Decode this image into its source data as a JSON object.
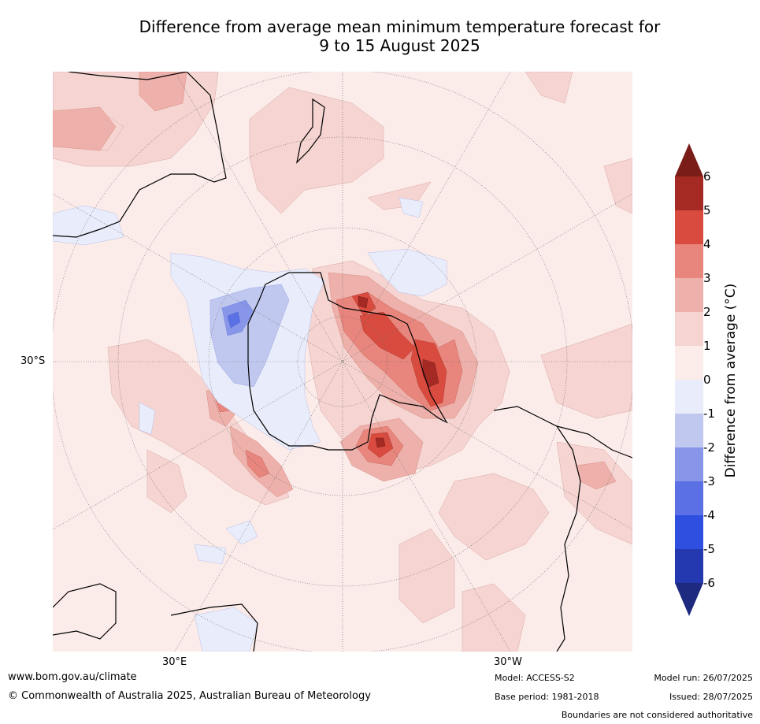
{
  "title": {
    "line1": "Difference from average mean minimum temperature forecast for",
    "line2": "9 to 15 August 2025"
  },
  "map": {
    "projection": "south polar stereographic",
    "lat_label": "30°S",
    "lon_labels": [
      "30°E",
      "30°W"
    ],
    "gridlines": "dotted"
  },
  "colorbar": {
    "label": "Difference from average ($^\\circ$C)",
    "label_display": "Difference from average (°C)",
    "ticks": [
      "6",
      "5",
      "4",
      "3",
      "2",
      "1",
      "0",
      "-1",
      "-2",
      "-3",
      "-4",
      "-5",
      "-6"
    ],
    "colors": {
      "gt6": "#7a1c18",
      "5_6": "#a52a24",
      "4_5": "#d94b3f",
      "3_4": "#e8857c",
      "2_3": "#eeb0aa",
      "1_2": "#f5d4d1",
      "0_1": "#fbebe9",
      "m1_0": "#e9ecfa",
      "m2_m1": "#c0c8f0",
      "m3_m2": "#8796e8",
      "m4_m3": "#5a70e4",
      "m5_m4": "#2f4fe0",
      "m6_m5": "#2438b0",
      "lt_m6": "#1e2a80"
    },
    "extend": "both"
  },
  "footer": {
    "website": "www.bom.gov.au/climate",
    "copyright": "© Commonwealth of Australia 2025, Australian Bureau of Meteorology",
    "model": "Model: ACCESS-S2",
    "base_period": "Base period: 1981-2018",
    "model_run": "Model run: 26/07/2025",
    "issued": "Issued: 28/07/2025",
    "disclaimer": "Boundaries are not considered authoritative"
  }
}
